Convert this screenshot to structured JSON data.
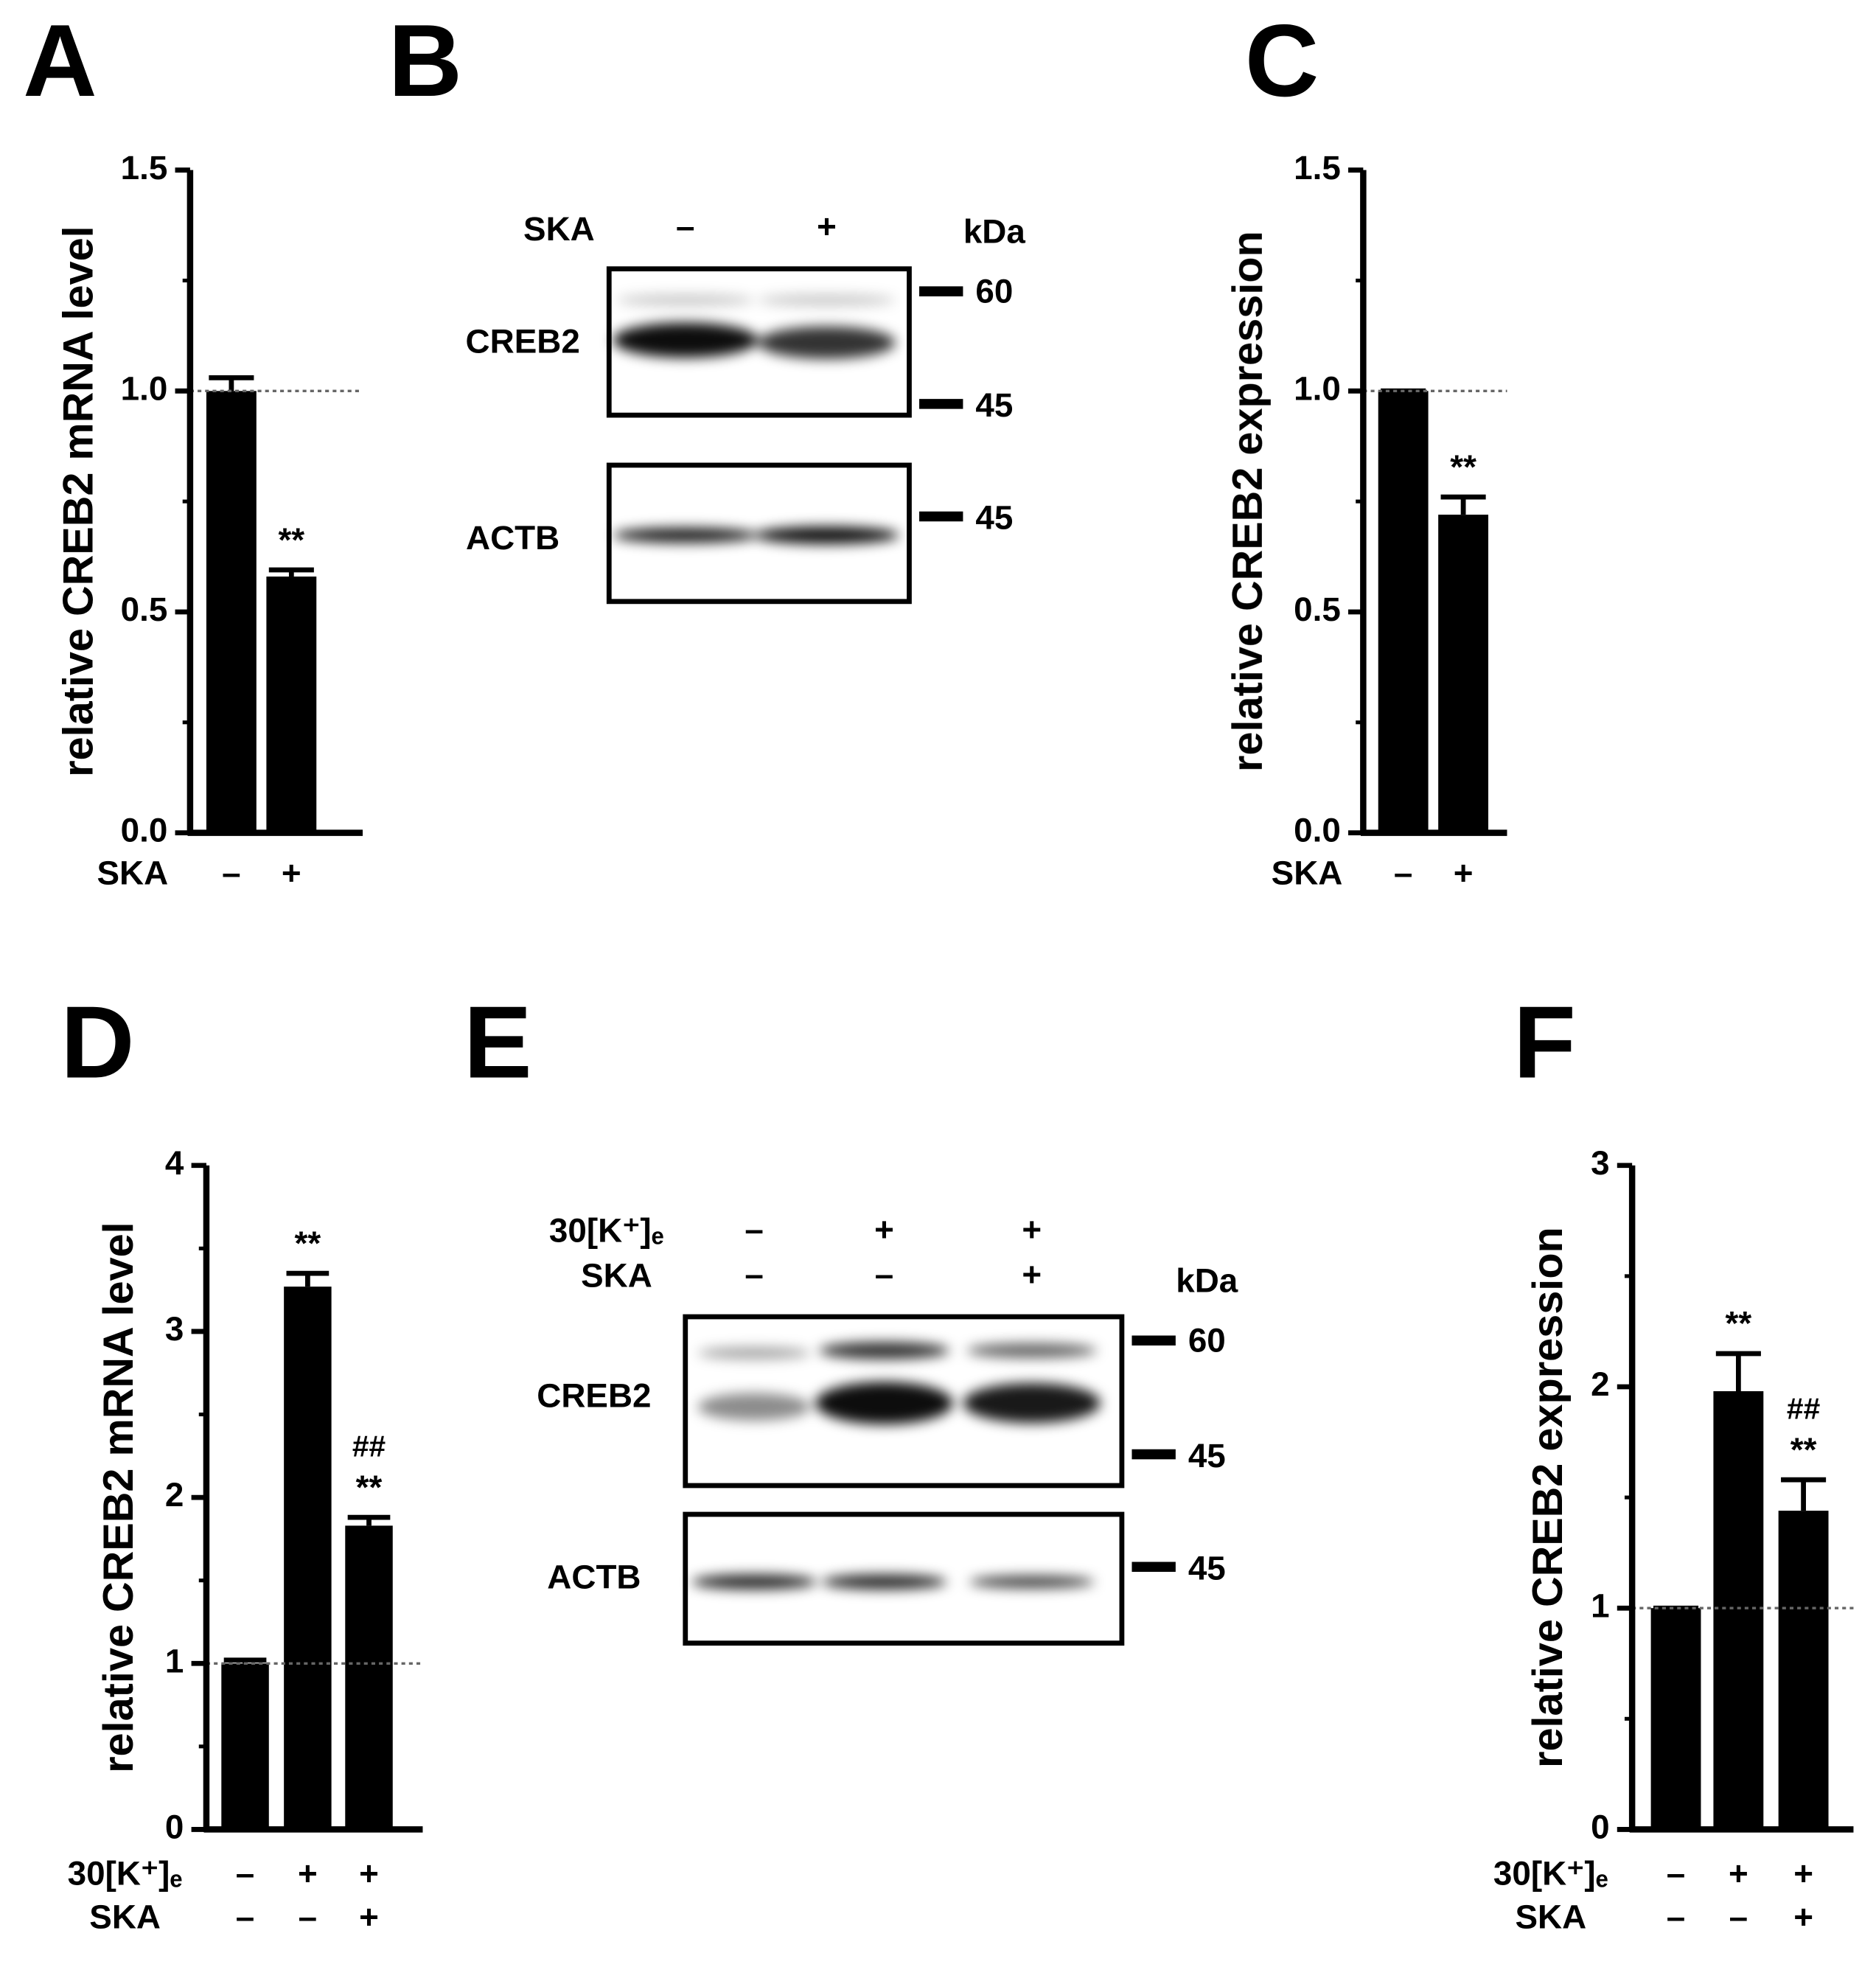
{
  "chart_data": [
    {
      "type": "bar",
      "panel": "A",
      "ylabel": "relative CREB2 mRNA level",
      "color": "#000000",
      "condition_rows": [
        {
          "name": "SKA",
          "values": [
            "–",
            "+"
          ]
        }
      ],
      "values": [
        1.0,
        0.58
      ],
      "errors": [
        0.03,
        0.015
      ],
      "sig": [
        null,
        "**"
      ],
      "sig2": [
        null,
        null
      ],
      "ylim": [
        0,
        1.5
      ],
      "yticks": [
        {
          "value": 0,
          "label": "0.0"
        },
        {
          "value": 0.5,
          "label": "0.5"
        },
        {
          "value": 1,
          "label": "1.0"
        },
        {
          "value": 1.5,
          "label": "1.5"
        }
      ],
      "yminor": [
        0.25,
        0.75,
        1.25
      ],
      "refline": 1
    },
    {
      "type": "bar",
      "panel": "C",
      "ylabel": "relative CREB2 expression",
      "color": "#000000",
      "condition_rows": [
        {
          "name": "SKA",
          "values": [
            "–",
            "+"
          ]
        }
      ],
      "values": [
        1.0,
        0.72
      ],
      "errors": [
        0,
        0.04
      ],
      "sig": [
        null,
        "**"
      ],
      "sig2": [
        null,
        null
      ],
      "ylim": [
        0,
        1.5
      ],
      "yticks": [
        {
          "value": 0,
          "label": "0.0"
        },
        {
          "value": 0.5,
          "label": "0.5"
        },
        {
          "value": 1,
          "label": "1.0"
        },
        {
          "value": 1.5,
          "label": "1.5"
        }
      ],
      "yminor": [
        0.25,
        0.75,
        1.25
      ],
      "refline": 1
    },
    {
      "type": "bar",
      "panel": "D",
      "ylabel": "relative CREB2 mRNA level",
      "color": "#000000",
      "condition_rows": [
        {
          "name": "30[K⁺]ₑ",
          "values": [
            "–",
            "+",
            "+"
          ]
        },
        {
          "name": "SKA",
          "values": [
            "–",
            "–",
            "+"
          ]
        }
      ],
      "values": [
        1.0,
        3.27,
        1.83
      ],
      "errors": [
        0.02,
        0.08,
        0.05
      ],
      "sig": [
        null,
        "**",
        "**"
      ],
      "sig2": [
        null,
        null,
        "##"
      ],
      "ylim": [
        0,
        4
      ],
      "yticks": [
        0,
        1,
        2,
        3,
        4
      ],
      "yminor": [
        0.5,
        1.5,
        2.5,
        3.5
      ],
      "refline": 1
    },
    {
      "type": "bar",
      "panel": "F",
      "ylabel": "relative CREB2 expression",
      "color": "#000000",
      "condition_rows": [
        {
          "name": "30[K⁺]ₑ",
          "values": [
            "–",
            "+",
            "+"
          ]
        },
        {
          "name": "SKA",
          "values": [
            "–",
            "–",
            "+"
          ]
        }
      ],
      "values": [
        1.0,
        1.98,
        1.44
      ],
      "errors": [
        0,
        0.17,
        0.14
      ],
      "sig": [
        null,
        "**",
        "**"
      ],
      "sig2": [
        null,
        null,
        "##"
      ],
      "ylim": [
        0,
        3
      ],
      "yticks": [
        0,
        1,
        2,
        3
      ],
      "yminor": [
        0.5,
        1.5,
        2.5
      ],
      "refline": 1
    }
  ],
  "blots": [
    {
      "panel": "B",
      "kda": "kDa",
      "lanes": [
        {
          "name": "SKA",
          "values": [
            "–",
            "+"
          ]
        }
      ],
      "proteins": [
        {
          "name": "CREB2",
          "markers": [
            "60",
            "45"
          ]
        },
        {
          "name": "ACTB",
          "markers": [
            "45"
          ]
        }
      ]
    },
    {
      "panel": "E",
      "kda": "kDa",
      "lanes": [
        {
          "name": "30[K⁺]ₑ",
          "values": [
            "–",
            "+",
            "+"
          ]
        },
        {
          "name": "SKA",
          "values": [
            "–",
            "–",
            "+"
          ]
        }
      ],
      "proteins": [
        {
          "name": "CREB2",
          "markers": [
            "60",
            "45"
          ]
        },
        {
          "name": "ACTB",
          "markers": [
            "45"
          ]
        }
      ]
    }
  ]
}
